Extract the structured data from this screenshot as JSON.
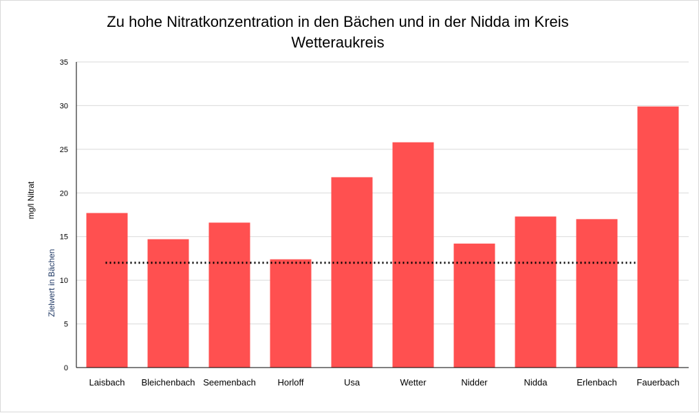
{
  "chart_data": {
    "type": "bar",
    "title": "Zu hohe Nitratkonzentration in den Bächen und in der Nidda im Kreis Wetteraukreis",
    "xlabel": "",
    "ylabel": "mg/l Nitrat",
    "ylim": [
      0,
      35
    ],
    "yticks": [
      0,
      5,
      10,
      15,
      20,
      25,
      30,
      35
    ],
    "grid": true,
    "categories": [
      "Laisbach",
      "Bleichenbach",
      "Seemenbach",
      "Horloff",
      "Usa",
      "Wetter",
      "Nidder",
      "Nidda",
      "Erlenbach",
      "Fauerbach"
    ],
    "values": [
      17.7,
      14.7,
      16.6,
      12.4,
      21.8,
      25.8,
      14.2,
      17.3,
      17.0,
      29.9
    ],
    "bar_color": "#ff5050",
    "target_line": {
      "value": 12,
      "label": "Zielwert in Bächen",
      "style": "dotted",
      "color": "#000000"
    }
  }
}
